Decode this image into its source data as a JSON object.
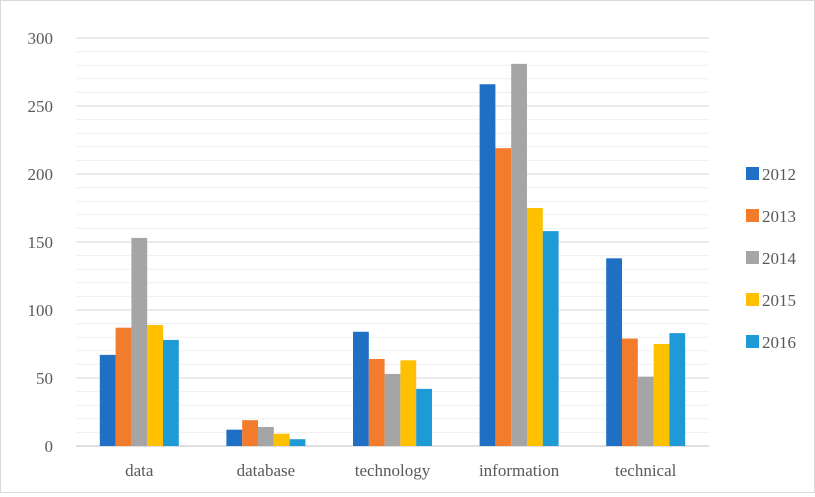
{
  "chart_data": {
    "type": "bar",
    "title": "",
    "xlabel": "",
    "ylabel": "",
    "categories": [
      "data",
      "database",
      "technology",
      "information",
      "technical"
    ],
    "series": [
      {
        "name": "2012",
        "color": "#1f6fc5",
        "values": [
          67,
          12,
          84,
          266,
          138
        ]
      },
      {
        "name": "2013",
        "color": "#f37c2c",
        "values": [
          87,
          19,
          64,
          219,
          79
        ]
      },
      {
        "name": "2014",
        "color": "#a5a5a5",
        "values": [
          153,
          14,
          53,
          281,
          51
        ]
      },
      {
        "name": "2015",
        "color": "#ffc000",
        "values": [
          89,
          9,
          63,
          175,
          75
        ]
      },
      {
        "name": "2016",
        "color": "#1e9ad6",
        "values": [
          78,
          5,
          42,
          158,
          83
        ]
      }
    ],
    "ylim": [
      0,
      300
    ],
    "y_ticks": [
      "0",
      "50",
      "100",
      "150",
      "200",
      "250",
      "300"
    ],
    "grid": true,
    "legend_position": "right"
  }
}
